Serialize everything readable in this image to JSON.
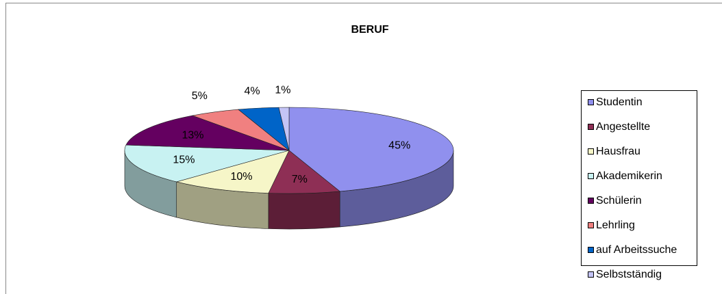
{
  "chart_data": {
    "type": "pie",
    "title": "BERUF",
    "categories": [
      "Studentin",
      "Angestellte",
      "Hausfrau",
      "Akademikerin",
      "Schülerin",
      "Lehrling",
      "auf Arbeitssuche",
      "Selbstständig"
    ],
    "values": [
      45,
      7,
      10,
      15,
      13,
      5,
      4,
      1
    ],
    "value_labels": [
      "45%",
      "7%",
      "10%",
      "15%",
      "13%",
      "5%",
      "4%",
      "1%"
    ],
    "colors": [
      "#9090ee",
      "#8e2f55",
      "#f6f6c8",
      "#c8f2f2",
      "#640060",
      "#f08080",
      "#0064c8",
      "#c4c4f6"
    ],
    "legend": "right"
  }
}
